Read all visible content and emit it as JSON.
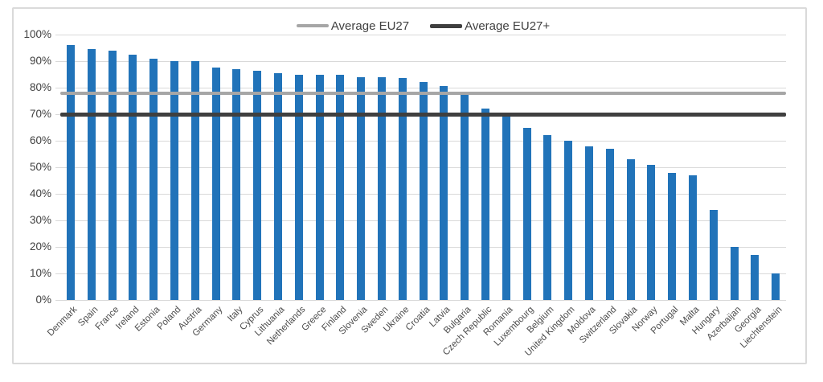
{
  "chart_data": {
    "type": "bar",
    "title": "",
    "categories": [
      "Denmark",
      "Spain",
      "France",
      "Ireland",
      "Estonia",
      "Poland",
      "Austria",
      "Germany",
      "Italy",
      "Cyprus",
      "Lithuania",
      "Netherlands",
      "Greece",
      "Finland",
      "Slovenia",
      "Sweden",
      "Ukraine",
      "Croatia",
      "Latvia",
      "Bulgaria",
      "Czech Republic",
      "Romania",
      "Luxembourg",
      "Belgium",
      "United Kingdom",
      "Moldova",
      "Switzerland",
      "Slovakia",
      "Norway",
      "Portugal",
      "Malta",
      "Hungary",
      "Azerbaijan",
      "Georgia",
      "Liechtenstein"
    ],
    "values": [
      96,
      94.5,
      94,
      92.5,
      91,
      90,
      90,
      87.5,
      87,
      86.5,
      85.5,
      85,
      85,
      85,
      84,
      84,
      83.5,
      82,
      80.5,
      77.5,
      72,
      69.5,
      65,
      62,
      60,
      58,
      57,
      53,
      51,
      48,
      47,
      34,
      20,
      17,
      10
    ],
    "xlabel": "",
    "ylabel": "",
    "ylim": [
      0,
      100
    ],
    "ytick_step": 10,
    "ytick_labels": [
      "0%",
      "10%",
      "20%",
      "30%",
      "40%",
      "50%",
      "60%",
      "70%",
      "80%",
      "90%",
      "100%"
    ],
    "grid": true,
    "legend_position": "top-center",
    "legend": [
      {
        "label": "Average EU27",
        "value": 78,
        "color": "#a6a6a6"
      },
      {
        "label": "Average EU27+",
        "value": 70,
        "color": "#3f3f3f"
      }
    ],
    "colors": {
      "bar": "#2173b9",
      "gridline": "#d9d9d9",
      "axis_text": "#404040",
      "frame_border": "#dadada"
    }
  }
}
